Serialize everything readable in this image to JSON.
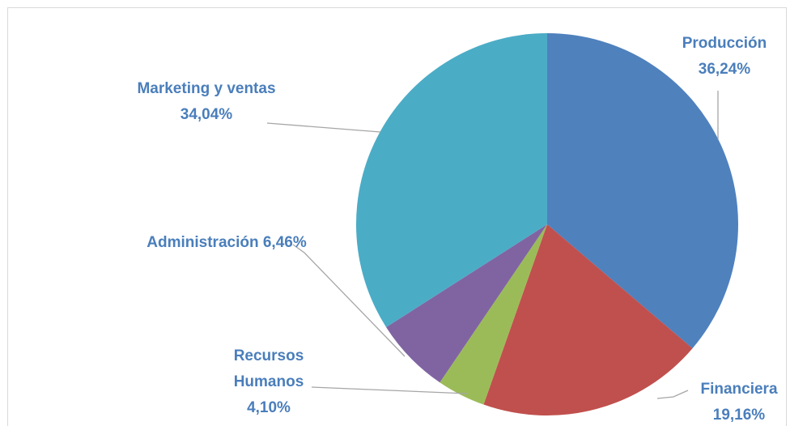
{
  "chart_data": {
    "type": "pie",
    "categories": [
      "Producción",
      "Financiera",
      "Recursos Humanos",
      "Administración",
      "Marketing y ventas"
    ],
    "values": [
      36.24,
      19.16,
      4.1,
      6.46,
      34.04
    ],
    "value_labels": [
      "36,24%",
      "19,16%",
      "4,10%",
      "6,46%",
      "34,04%"
    ],
    "colors": [
      "#4f81bd",
      "#c0504d",
      "#9bbb59",
      "#8064a2",
      "#4bacc6"
    ]
  }
}
